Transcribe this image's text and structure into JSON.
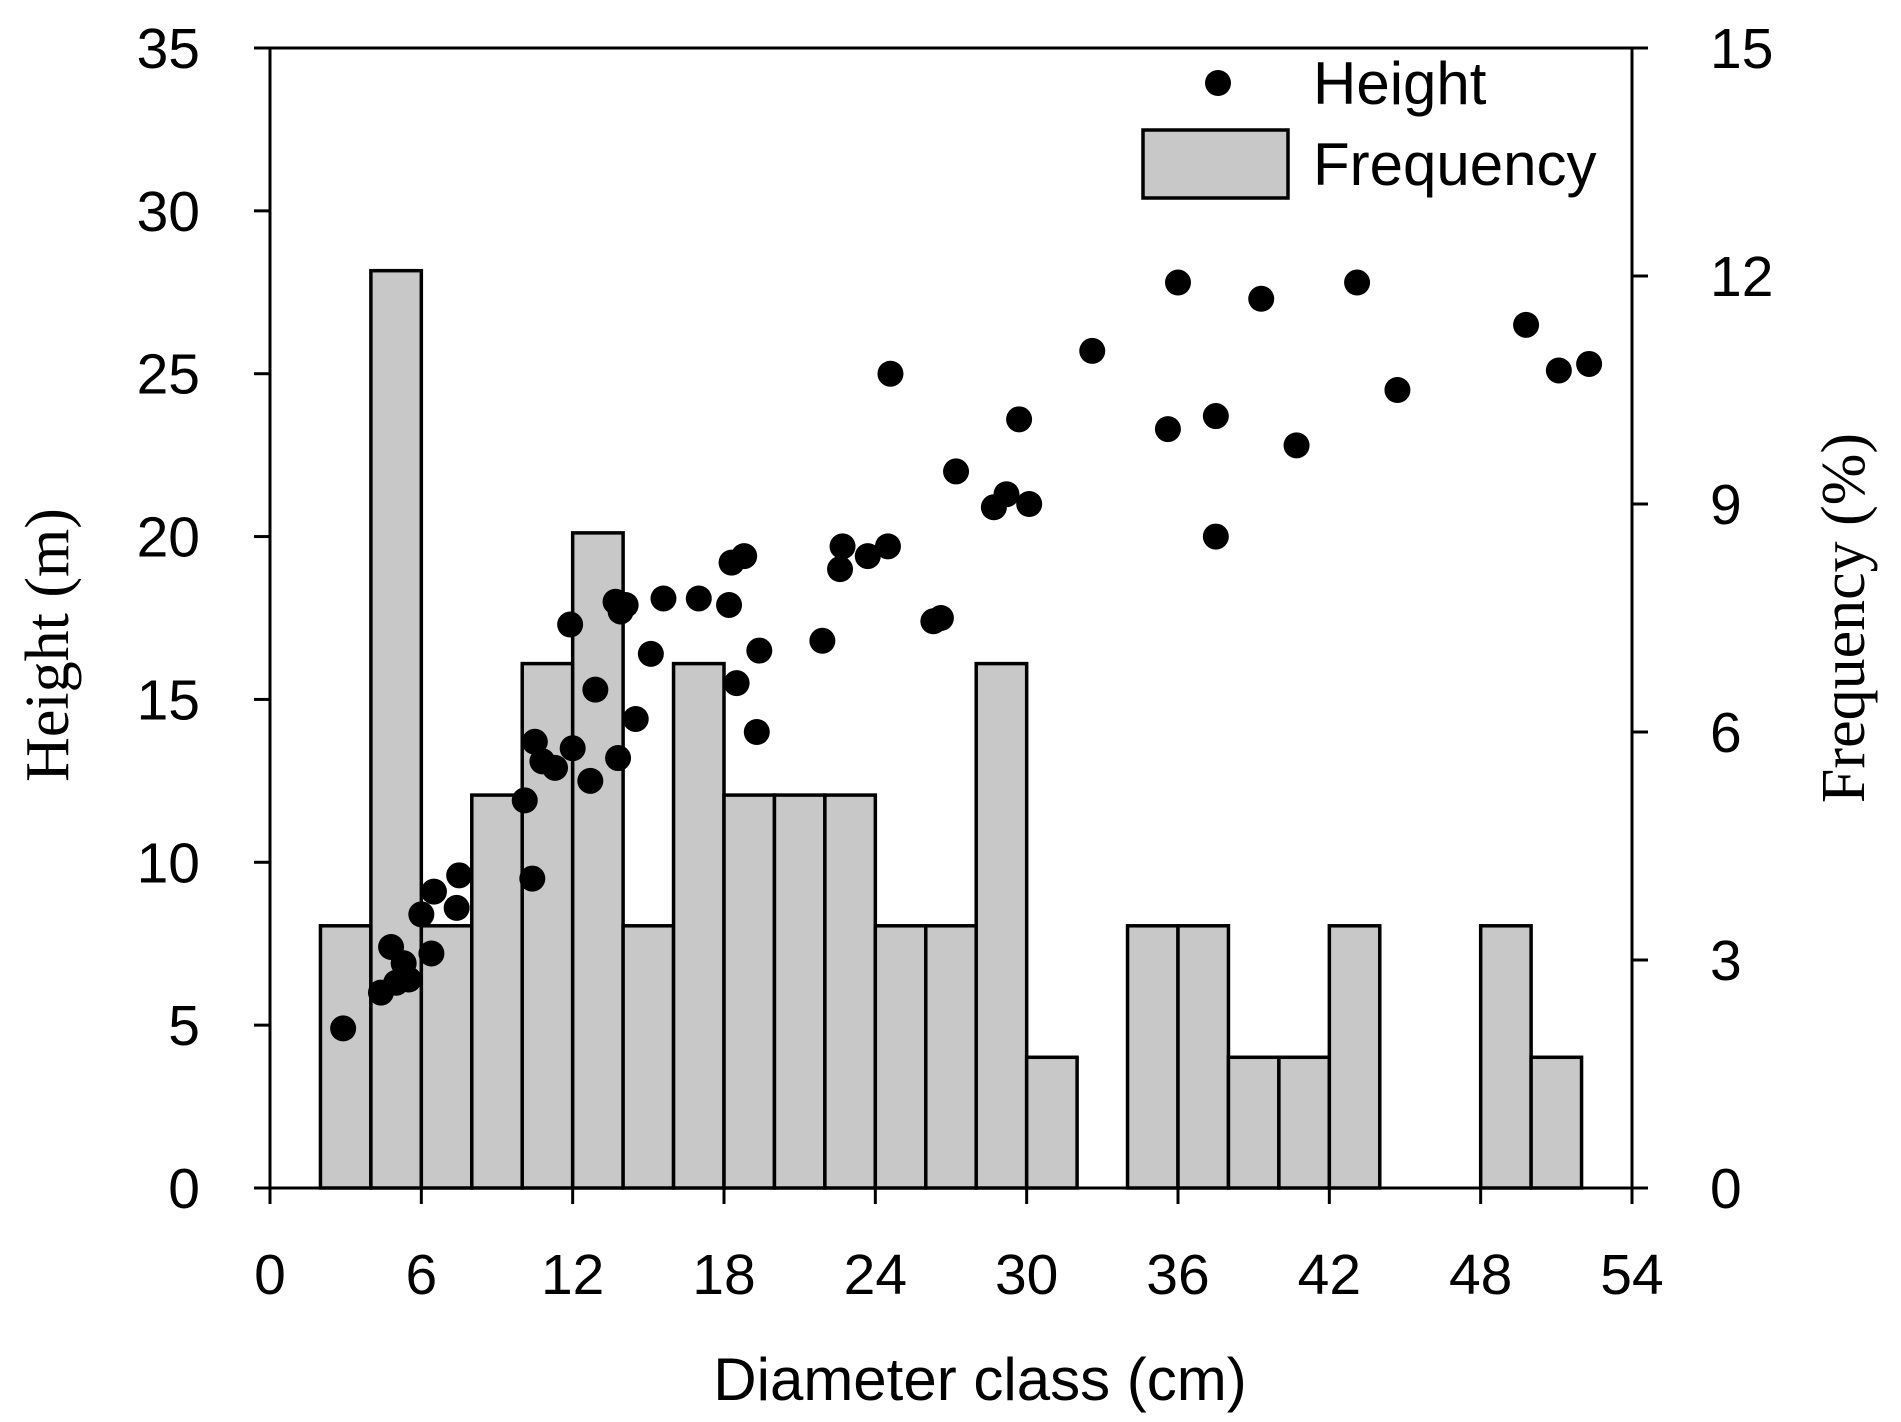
{
  "chart_data": {
    "type": "bar+scatter",
    "xlabel": "Diameter class (cm)",
    "ylabel_left": "Height (m)",
    "ylabel_right": "Frequency (%)",
    "xlim": [
      0,
      54
    ],
    "ylim_left": [
      0,
      35
    ],
    "ylim_right": [
      0,
      15
    ],
    "x_ticks": [
      0,
      6,
      12,
      18,
      24,
      30,
      36,
      42,
      48,
      54
    ],
    "y_left_ticks": [
      0,
      5,
      10,
      15,
      20,
      25,
      30,
      35
    ],
    "y_right_ticks": [
      0,
      3,
      6,
      9,
      12,
      15
    ],
    "legend": [
      {
        "label": "Height",
        "marker": "dot"
      },
      {
        "label": "Frequency",
        "marker": "bar"
      }
    ],
    "frequency_bars": {
      "name": "Frequency",
      "bin_width": 2,
      "bin_starts": [
        2,
        4,
        6,
        8,
        10,
        12,
        14,
        16,
        18,
        20,
        22,
        24,
        26,
        28,
        30,
        34,
        36,
        38,
        40,
        42,
        48,
        50
      ],
      "values": [
        3.45,
        12.07,
        3.45,
        5.17,
        6.9,
        8.62,
        3.45,
        6.9,
        5.17,
        5.17,
        5.17,
        3.45,
        3.45,
        6.9,
        1.72,
        3.45,
        3.45,
        1.72,
        1.72,
        3.45,
        3.45,
        1.72
      ]
    },
    "height_points": {
      "name": "Height",
      "x": [
        2.9,
        4.4,
        4.8,
        5.0,
        5.3,
        5.5,
        6.0,
        6.4,
        6.5,
        7.4,
        7.5,
        10.1,
        10.4,
        10.5,
        10.8,
        11.3,
        11.9,
        12.0,
        12.7,
        12.9,
        13.7,
        13.8,
        13.9,
        14.1,
        14.5,
        15.1,
        15.6,
        17.0,
        18.2,
        18.3,
        18.5,
        18.8,
        19.3,
        19.4,
        21.9,
        22.6,
        22.7,
        23.7,
        24.5,
        24.6,
        26.3,
        26.6,
        27.2,
        28.7,
        29.2,
        29.7,
        30.1,
        32.6,
        35.6,
        36.0,
        37.5,
        37.5,
        39.3,
        40.7,
        43.1,
        44.7,
        49.8,
        51.1,
        52.3
      ],
      "y": [
        4.9,
        6.0,
        7.4,
        6.3,
        6.9,
        6.4,
        8.4,
        7.2,
        9.1,
        8.6,
        9.6,
        11.9,
        9.5,
        13.7,
        13.1,
        12.9,
        17.3,
        13.5,
        12.5,
        15.3,
        18.0,
        13.2,
        17.7,
        17.9,
        14.4,
        16.4,
        18.1,
        18.1,
        17.9,
        19.2,
        15.5,
        19.4,
        14.0,
        16.5,
        16.8,
        19.0,
        19.7,
        19.4,
        19.7,
        25.0,
        17.4,
        17.5,
        22.0,
        20.9,
        21.3,
        23.6,
        21.0,
        25.7,
        23.3,
        27.8,
        20.0,
        23.7,
        27.3,
        22.8,
        27.8,
        24.5,
        26.5,
        25.1,
        25.3
      ]
    }
  }
}
